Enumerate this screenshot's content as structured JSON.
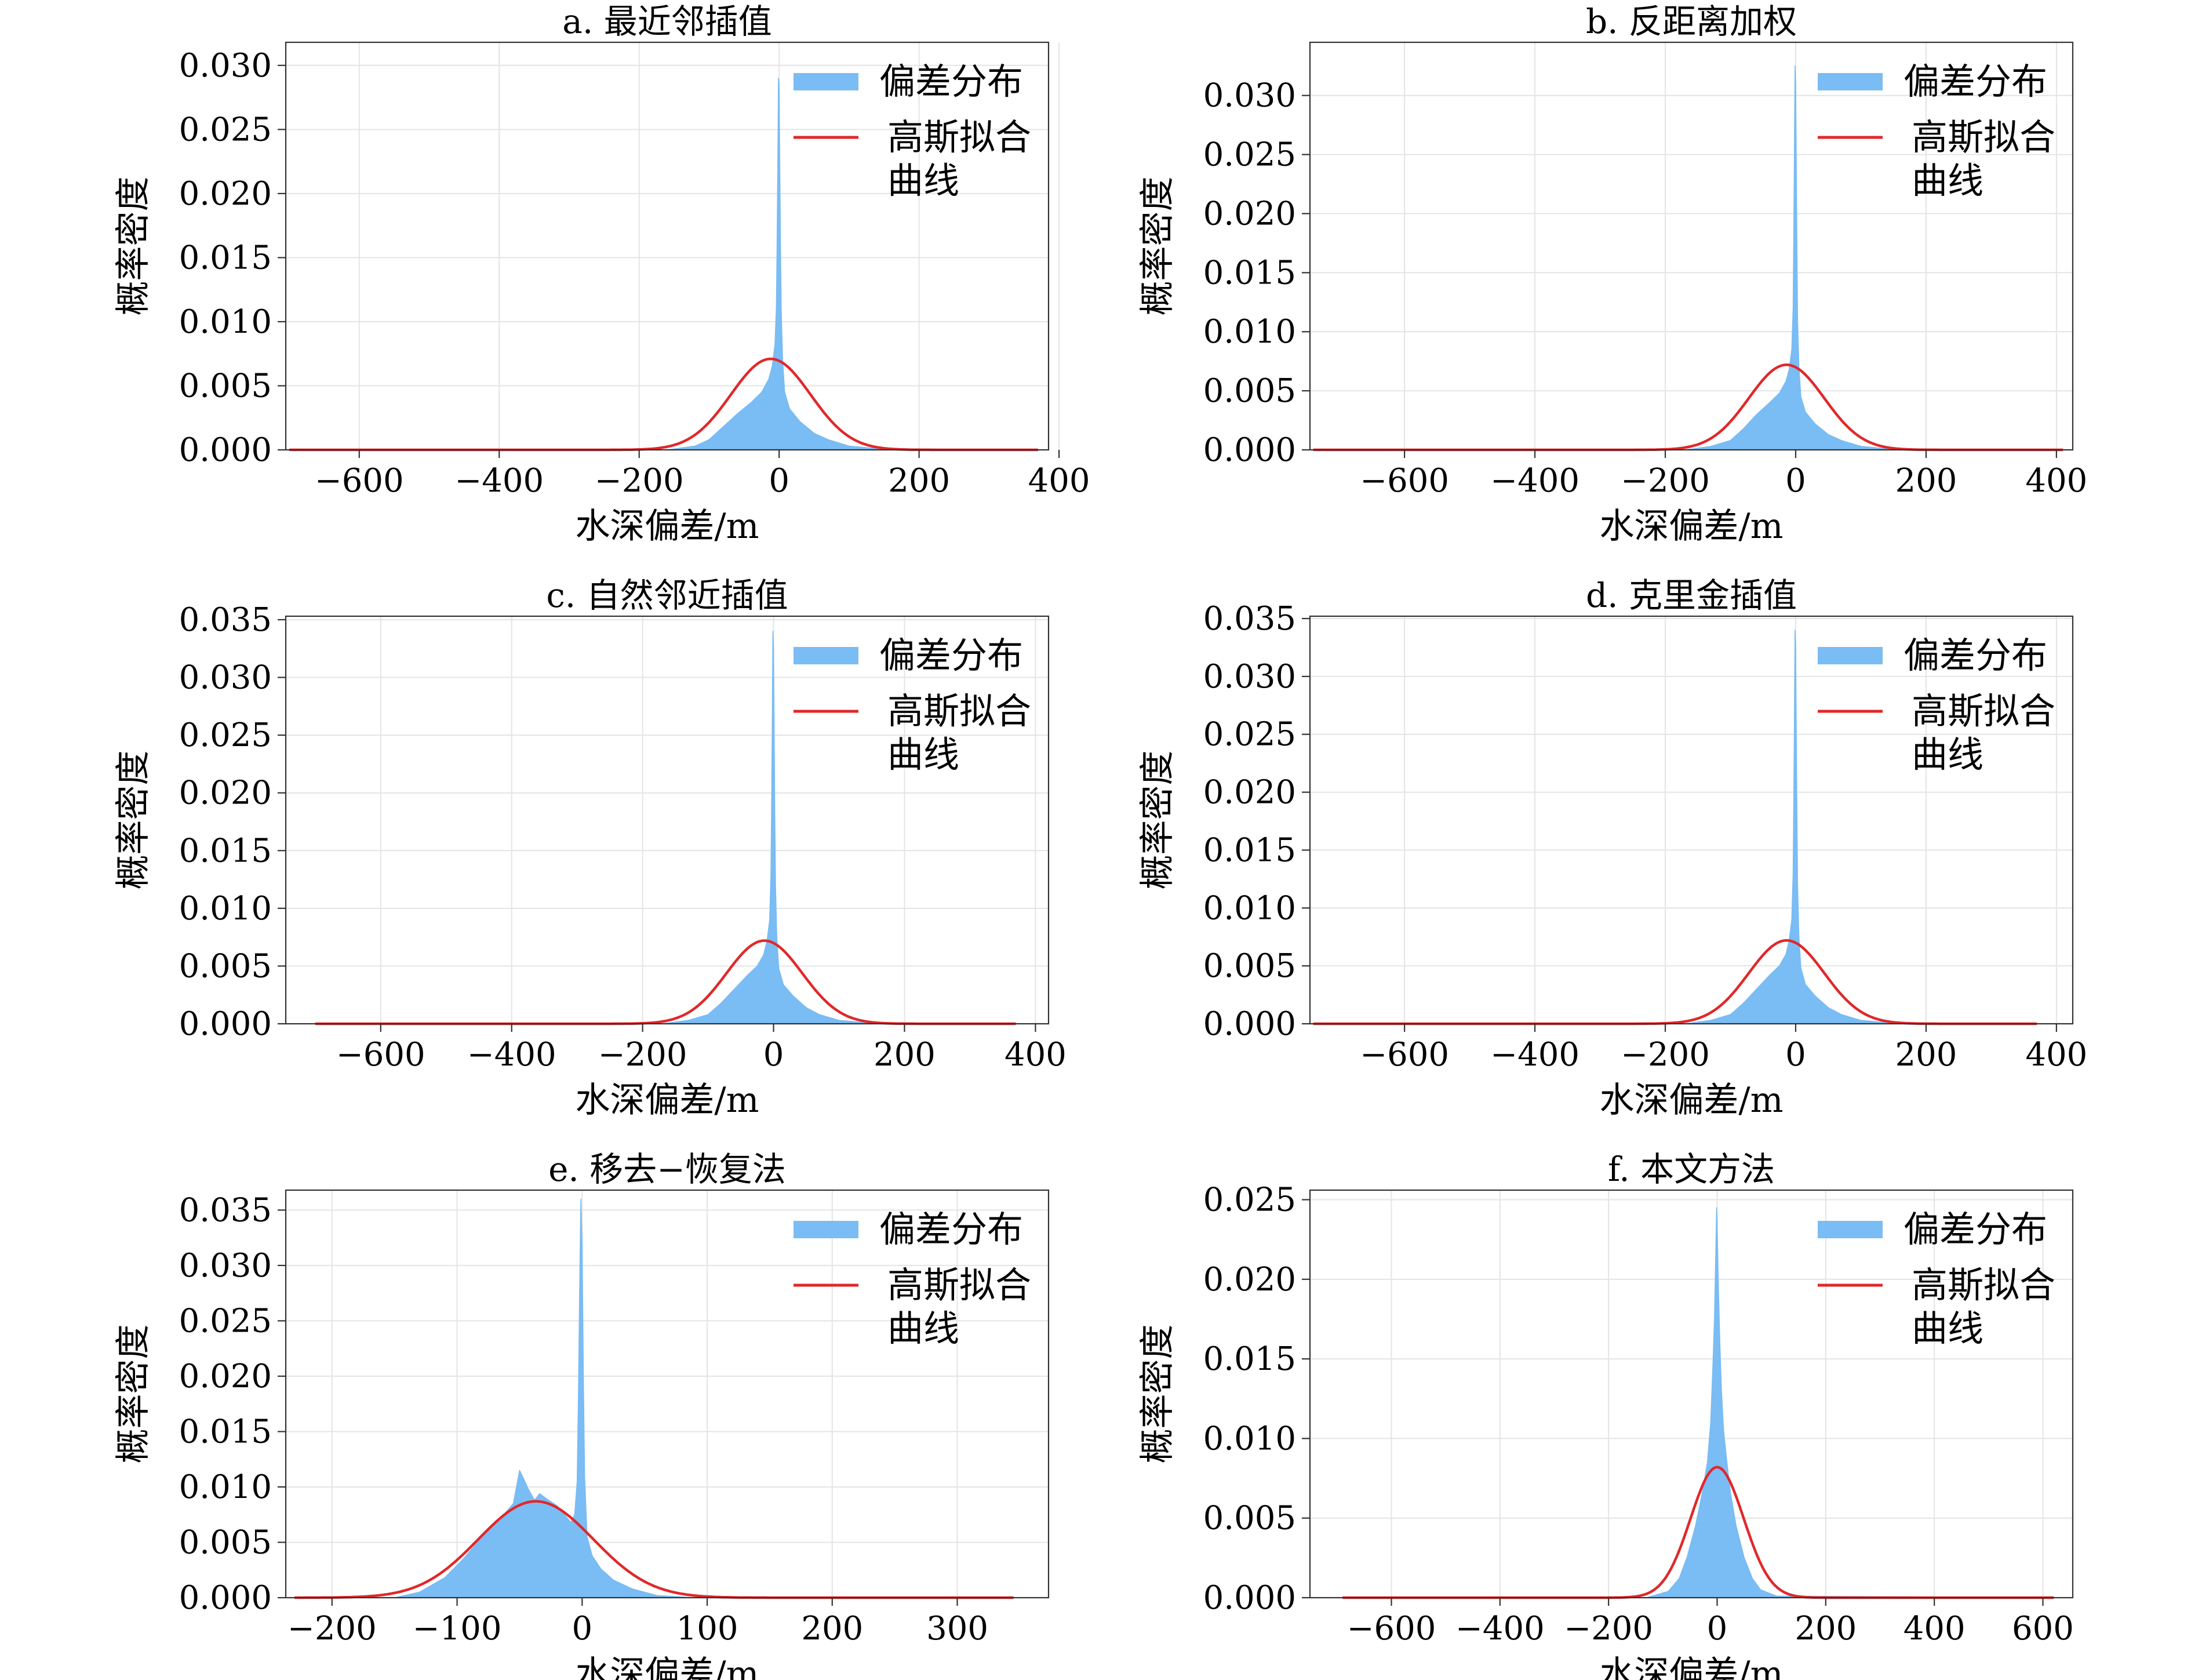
{
  "common": {
    "ylabel": "概率密度",
    "xlabel": "水深偏差/m",
    "legend_hist": "偏差分布",
    "legend_fit": "高斯拟合曲线",
    "legend_fit_lines": [
      "高斯拟合",
      "曲线"
    ],
    "hist_color": "#7abcf4",
    "fit_color": "#e0282a",
    "grid": true,
    "legend_position": "upper-right"
  },
  "chart_data": [
    {
      "type": "histogram",
      "title": "a. 最近邻插值",
      "xlim": [
        -705,
        385
      ],
      "ylim": [
        0,
        0.0318
      ],
      "xticks": [
        -600,
        -400,
        -200,
        0,
        200,
        400
      ],
      "yticks": [
        0.0,
        0.005,
        0.01,
        0.015,
        0.02,
        0.025,
        0.03
      ],
      "ytick_labels": [
        "0.000",
        "0.005",
        "0.010",
        "0.015",
        "0.020",
        "0.025",
        "0.030"
      ],
      "hist_points": [
        [
          -700,
          0
        ],
        [
          -160,
          0
        ],
        [
          -120,
          0.0003
        ],
        [
          -100,
          0.0008
        ],
        [
          -80,
          0.0018
        ],
        [
          -60,
          0.0028
        ],
        [
          -40,
          0.0037
        ],
        [
          -25,
          0.0045
        ],
        [
          -15,
          0.0055
        ],
        [
          -10,
          0.0065
        ],
        [
          -6,
          0.0082
        ],
        [
          -4,
          0.011
        ],
        [
          -3,
          0.016
        ],
        [
          -2,
          0.022
        ],
        [
          -1,
          0.029
        ],
        [
          0,
          0.0285
        ],
        [
          1,
          0.022
        ],
        [
          2,
          0.016
        ],
        [
          3,
          0.011
        ],
        [
          5,
          0.007
        ],
        [
          8,
          0.0045
        ],
        [
          15,
          0.0032
        ],
        [
          30,
          0.0022
        ],
        [
          50,
          0.0013
        ],
        [
          70,
          0.0008
        ],
        [
          100,
          0.0003
        ],
        [
          140,
          0.0001
        ],
        [
          370,
          0
        ]
      ],
      "fit": {
        "mean": -12,
        "std": 57,
        "peak": 0.0071,
        "x_range": [
          -700,
          370
        ]
      }
    },
    {
      "type": "histogram",
      "title": "b. 反距离加权",
      "xlim": [
        -745,
        425
      ],
      "ylim": [
        0,
        0.0345
      ],
      "xticks": [
        -600,
        -400,
        -200,
        0,
        200,
        400
      ],
      "yticks": [
        0.0,
        0.005,
        0.01,
        0.015,
        0.02,
        0.025,
        0.03
      ],
      "ytick_labels": [
        "0.000",
        "0.005",
        "0.010",
        "0.015",
        "0.020",
        "0.025",
        "0.030"
      ],
      "hist_points": [
        [
          -740,
          0
        ],
        [
          -170,
          0
        ],
        [
          -130,
          0.0003
        ],
        [
          -100,
          0.0008
        ],
        [
          -80,
          0.0018
        ],
        [
          -60,
          0.003
        ],
        [
          -40,
          0.004
        ],
        [
          -25,
          0.0048
        ],
        [
          -15,
          0.0058
        ],
        [
          -10,
          0.0068
        ],
        [
          -6,
          0.0085
        ],
        [
          -4,
          0.012
        ],
        [
          -3,
          0.018
        ],
        [
          -2,
          0.025
        ],
        [
          -1,
          0.0325
        ],
        [
          0,
          0.031
        ],
        [
          1,
          0.024
        ],
        [
          2,
          0.017
        ],
        [
          3,
          0.011
        ],
        [
          5,
          0.007
        ],
        [
          8,
          0.0045
        ],
        [
          15,
          0.0032
        ],
        [
          30,
          0.0022
        ],
        [
          50,
          0.0013
        ],
        [
          70,
          0.0008
        ],
        [
          100,
          0.0003
        ],
        [
          140,
          0.0001
        ],
        [
          410,
          0
        ]
      ],
      "fit": {
        "mean": -14,
        "std": 58,
        "peak": 0.0072,
        "x_range": [
          -740,
          410
        ]
      }
    },
    {
      "type": "histogram",
      "title": "c. 自然邻近插值",
      "xlim": [
        -745,
        420
      ],
      "ylim": [
        0,
        0.0353
      ],
      "xticks": [
        -600,
        -400,
        -200,
        0,
        200,
        400
      ],
      "yticks": [
        0.0,
        0.005,
        0.01,
        0.015,
        0.02,
        0.025,
        0.03,
        0.035
      ],
      "ytick_labels": [
        "0.000",
        "0.005",
        "0.010",
        "0.015",
        "0.020",
        "0.025",
        "0.030",
        "0.035"
      ],
      "hist_points": [
        [
          -700,
          0
        ],
        [
          -170,
          0
        ],
        [
          -130,
          0.0003
        ],
        [
          -100,
          0.0008
        ],
        [
          -80,
          0.0018
        ],
        [
          -60,
          0.003
        ],
        [
          -40,
          0.0042
        ],
        [
          -25,
          0.005
        ],
        [
          -15,
          0.006
        ],
        [
          -10,
          0.0072
        ],
        [
          -6,
          0.009
        ],
        [
          -4,
          0.013
        ],
        [
          -3,
          0.019
        ],
        [
          -2,
          0.026
        ],
        [
          -1,
          0.034
        ],
        [
          0,
          0.0325
        ],
        [
          1,
          0.025
        ],
        [
          2,
          0.018
        ],
        [
          3,
          0.012
        ],
        [
          5,
          0.0075
        ],
        [
          8,
          0.0048
        ],
        [
          15,
          0.0034
        ],
        [
          30,
          0.0024
        ],
        [
          50,
          0.0014
        ],
        [
          70,
          0.0008
        ],
        [
          100,
          0.0003
        ],
        [
          140,
          0.0001
        ],
        [
          370,
          0
        ]
      ],
      "fit": {
        "mean": -14,
        "std": 58,
        "peak": 0.0072,
        "x_range": [
          -700,
          370
        ]
      }
    },
    {
      "type": "histogram",
      "title": "d. 克里金插值",
      "xlim": [
        -745,
        425
      ],
      "ylim": [
        0,
        0.0352
      ],
      "xticks": [
        -600,
        -400,
        -200,
        0,
        200,
        400
      ],
      "yticks": [
        0.0,
        0.005,
        0.01,
        0.015,
        0.02,
        0.025,
        0.03,
        0.035
      ],
      "ytick_labels": [
        "0.000",
        "0.005",
        "0.010",
        "0.015",
        "0.020",
        "0.025",
        "0.030",
        "0.035"
      ],
      "hist_points": [
        [
          -740,
          0
        ],
        [
          -170,
          0
        ],
        [
          -130,
          0.0003
        ],
        [
          -100,
          0.0008
        ],
        [
          -80,
          0.0018
        ],
        [
          -60,
          0.003
        ],
        [
          -40,
          0.0042
        ],
        [
          -25,
          0.005
        ],
        [
          -15,
          0.006
        ],
        [
          -10,
          0.0072
        ],
        [
          -6,
          0.009
        ],
        [
          -4,
          0.013
        ],
        [
          -3,
          0.019
        ],
        [
          -2,
          0.026
        ],
        [
          -1,
          0.034
        ],
        [
          0,
          0.0325
        ],
        [
          1,
          0.025
        ],
        [
          2,
          0.018
        ],
        [
          3,
          0.012
        ],
        [
          5,
          0.0075
        ],
        [
          8,
          0.0048
        ],
        [
          15,
          0.0034
        ],
        [
          30,
          0.0024
        ],
        [
          50,
          0.0014
        ],
        [
          70,
          0.0008
        ],
        [
          100,
          0.0003
        ],
        [
          140,
          0.0001
        ],
        [
          370,
          0
        ]
      ],
      "fit": {
        "mean": -14,
        "std": 58,
        "peak": 0.0072,
        "x_range": [
          -740,
          370
        ]
      }
    },
    {
      "type": "histogram",
      "title": "e. 移去−恢复法",
      "xlim": [
        -237,
        373
      ],
      "ylim": [
        0,
        0.0368
      ],
      "xticks": [
        -200,
        -100,
        0,
        100,
        200,
        300
      ],
      "yticks": [
        0.0,
        0.005,
        0.01,
        0.015,
        0.02,
        0.025,
        0.03,
        0.035
      ],
      "ytick_labels": [
        "0.000",
        "0.005",
        "0.010",
        "0.015",
        "0.020",
        "0.025",
        "0.030",
        "0.035"
      ],
      "hist_points": [
        [
          -230,
          0
        ],
        [
          -150,
          0
        ],
        [
          -130,
          0.0005
        ],
        [
          -110,
          0.0018
        ],
        [
          -95,
          0.0035
        ],
        [
          -80,
          0.0055
        ],
        [
          -65,
          0.0072
        ],
        [
          -55,
          0.0085
        ],
        [
          -50,
          0.0115
        ],
        [
          -47,
          0.0108
        ],
        [
          -43,
          0.0098
        ],
        [
          -38,
          0.0088
        ],
        [
          -34,
          0.0094
        ],
        [
          -28,
          0.0089
        ],
        [
          -20,
          0.0083
        ],
        [
          -14,
          0.0075
        ],
        [
          -9,
          0.0068
        ],
        [
          -6,
          0.0075
        ],
        [
          -4,
          0.0105
        ],
        [
          -3,
          0.018
        ],
        [
          -2,
          0.028
        ],
        [
          -1,
          0.036
        ],
        [
          0,
          0.032
        ],
        [
          1,
          0.02
        ],
        [
          2,
          0.011
        ],
        [
          4,
          0.0055
        ],
        [
          8,
          0.0038
        ],
        [
          15,
          0.0026
        ],
        [
          25,
          0.0016
        ],
        [
          40,
          0.0008
        ],
        [
          60,
          0.0002
        ],
        [
          90,
          0
        ],
        [
          345,
          0
        ]
      ],
      "fit": {
        "mean": -37,
        "std": 46,
        "peak": 0.0087,
        "x_range": [
          -230,
          345
        ]
      }
    },
    {
      "type": "histogram",
      "title": "f. 本文方法",
      "xlim": [
        -750,
        655
      ],
      "ylim": [
        0,
        0.0256
      ],
      "xticks": [
        -600,
        -400,
        -200,
        0,
        200,
        400,
        600
      ],
      "yticks": [
        0.0,
        0.005,
        0.01,
        0.015,
        0.02,
        0.025
      ],
      "ytick_labels": [
        "0.000",
        "0.005",
        "0.010",
        "0.015",
        "0.020",
        "0.025"
      ],
      "hist_points": [
        [
          -690,
          0
        ],
        [
          -130,
          0
        ],
        [
          -90,
          0.0004
        ],
        [
          -70,
          0.0012
        ],
        [
          -55,
          0.0026
        ],
        [
          -40,
          0.0045
        ],
        [
          -28,
          0.0065
        ],
        [
          -18,
          0.0085
        ],
        [
          -12,
          0.011
        ],
        [
          -8,
          0.0145
        ],
        [
          -5,
          0.0175
        ],
        [
          -3,
          0.021
        ],
        [
          -1,
          0.0245
        ],
        [
          0,
          0.0235
        ],
        [
          2,
          0.02
        ],
        [
          5,
          0.016
        ],
        [
          8,
          0.013
        ],
        [
          12,
          0.0105
        ],
        [
          18,
          0.0085
        ],
        [
          25,
          0.0065
        ],
        [
          35,
          0.0045
        ],
        [
          50,
          0.0025
        ],
        [
          65,
          0.0012
        ],
        [
          80,
          0.0005
        ],
        [
          110,
          0.0001
        ],
        [
          620,
          0
        ]
      ],
      "fit": {
        "mean": 0,
        "std": 49,
        "peak": 0.0082,
        "x_range": [
          -690,
          620
        ]
      }
    }
  ]
}
